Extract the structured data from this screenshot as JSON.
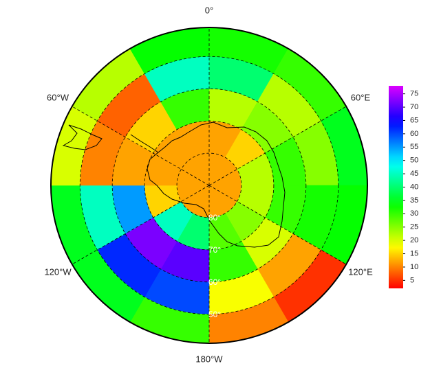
{
  "chart_data": {
    "type": "polar-heatmap",
    "lon_bins": [
      0,
      30,
      60,
      90,
      120,
      150,
      180,
      210,
      240,
      270,
      300,
      330,
      360
    ],
    "lat_bins": [
      -90,
      -80,
      -70,
      -60,
      -50,
      -41
    ],
    "values": [
      [
        12,
        12,
        12,
        12,
        12,
        12,
        12,
        12,
        12,
        12,
        12,
        12
      ],
      [
        12,
        15,
        22,
        22,
        25,
        28,
        40,
        45,
        15,
        12,
        12,
        12
      ],
      [
        22,
        25,
        30,
        30,
        20,
        30,
        70,
        72,
        55,
        12,
        15,
        30
      ],
      [
        40,
        22,
        25,
        32,
        12,
        18,
        60,
        62,
        45,
        10,
        8,
        45
      ],
      [
        32,
        30,
        35,
        33,
        5,
        10,
        30,
        35,
        35,
        20,
        22,
        33
      ]
    ],
    "rlim": [
      -90,
      -41
    ],
    "lon_ticks": [
      {
        "value": 0,
        "label": "0°"
      },
      {
        "value": 60,
        "label": "60°E"
      },
      {
        "value": 120,
        "label": "120°E"
      },
      {
        "value": 180,
        "label": "180°W"
      },
      {
        "value": 240,
        "label": "120°W"
      },
      {
        "value": 300,
        "label": "60°W"
      }
    ],
    "lat_ticks": [
      {
        "value": -80,
        "label": "80°"
      },
      {
        "value": -70,
        "label": "70°"
      },
      {
        "value": -60,
        "label": "60°"
      },
      {
        "value": -50,
        "label": "50°"
      }
    ],
    "clim": [
      2,
      78
    ],
    "colorbar_ticks": [
      5,
      10,
      15,
      20,
      25,
      30,
      35,
      40,
      45,
      50,
      55,
      60,
      65,
      70,
      75
    ],
    "grid": true
  }
}
